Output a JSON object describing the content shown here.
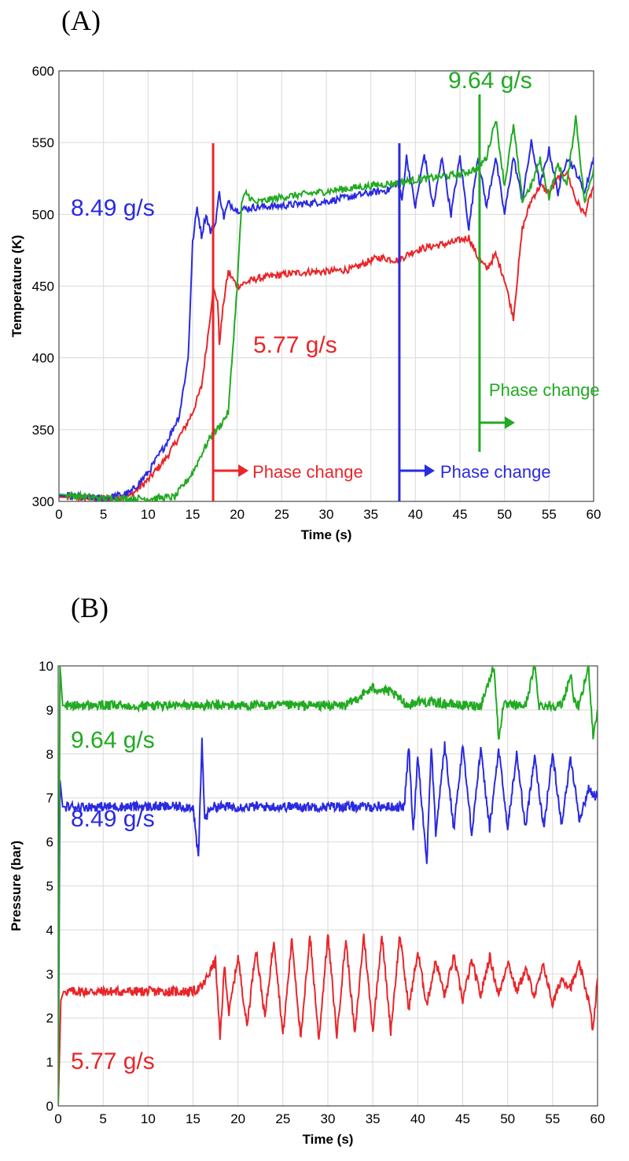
{
  "chart_data": [
    {
      "panel": "(A)",
      "type": "line",
      "xlabel": "Time (s)",
      "ylabel": "Temperature (K)",
      "xlim": [
        0,
        60
      ],
      "ylim": [
        300,
        600
      ],
      "xticks": [
        0,
        5,
        10,
        15,
        20,
        25,
        30,
        35,
        40,
        45,
        50,
        55,
        60
      ],
      "yticks": [
        300,
        350,
        400,
        450,
        500,
        550,
        600
      ],
      "grid": true,
      "series": [
        {
          "name": "5.77 g/s",
          "color": "#e8262a",
          "x": [
            0,
            5,
            8,
            10,
            12,
            14,
            15,
            16,
            16.8,
            17.3,
            17.8,
            18,
            18.5,
            19,
            20,
            22,
            25,
            28,
            30,
            33,
            35,
            36,
            38,
            40,
            42,
            44,
            45,
            46,
            47,
            48,
            49,
            50,
            51,
            52,
            53,
            54,
            55,
            56,
            57,
            58,
            59,
            60
          ],
          "y": [
            303,
            302,
            304,
            315,
            330,
            350,
            362,
            380,
            420,
            448,
            440,
            410,
            440,
            460,
            450,
            455,
            458,
            460,
            460,
            462,
            468,
            470,
            468,
            475,
            478,
            480,
            482,
            484,
            470,
            462,
            472,
            455,
            428,
            490,
            510,
            520,
            515,
            525,
            530,
            510,
            500,
            520
          ]
        },
        {
          "name": "8.49 g/s",
          "color": "#2a2ae0",
          "x": [
            0,
            5,
            8,
            10,
            12,
            13.5,
            14.5,
            15,
            15.5,
            16,
            16.5,
            17,
            17.5,
            18,
            18.5,
            19,
            20,
            22,
            25,
            30,
            35,
            37,
            38,
            38.5,
            39,
            40,
            41,
            42,
            43,
            44,
            45,
            46,
            47,
            48,
            49,
            50,
            51,
            52,
            53,
            54,
            55,
            56,
            57,
            58,
            59,
            60
          ],
          "y": [
            304,
            302,
            306,
            320,
            340,
            360,
            400,
            480,
            505,
            485,
            500,
            488,
            492,
            515,
            498,
            508,
            503,
            505,
            506,
            509,
            515,
            517,
            522,
            510,
            540,
            505,
            542,
            505,
            540,
            500,
            540,
            490,
            540,
            505,
            540,
            500,
            540,
            510,
            550,
            520,
            545,
            515,
            540,
            530,
            515,
            540
          ]
        },
        {
          "name": "9.64 g/s",
          "color": "#22aa22",
          "x": [
            0,
            5,
            10,
            13,
            15,
            16,
            17,
            18,
            19,
            20,
            20.5,
            21,
            22,
            25,
            30,
            35,
            38,
            40,
            45,
            47,
            48,
            49,
            50,
            51,
            52,
            53,
            54,
            55,
            56,
            57,
            58,
            59,
            60
          ],
          "y": [
            305,
            302,
            302,
            303,
            320,
            333,
            345,
            352,
            362,
            450,
            508,
            515,
            508,
            512,
            516,
            520,
            522,
            524,
            528,
            532,
            540,
            567,
            520,
            562,
            510,
            520,
            538,
            512,
            535,
            520,
            568,
            508,
            532
          ]
        }
      ],
      "annotations": {
        "label_577": "5.77 g/s",
        "label_849": "8.49 g/s",
        "label_964": "9.64 g/s",
        "phase_red": "Phase change",
        "phase_blue": "Phase change",
        "phase_green": "Phase change",
        "phase_red_x": 17.3,
        "phase_blue_x": 38.2,
        "phase_green_x": 47.2
      }
    },
    {
      "panel": "(B)",
      "type": "line",
      "xlabel": "Time (s)",
      "ylabel": "Pressure (bar)",
      "xlim": [
        0,
        60
      ],
      "ylim": [
        0,
        10
      ],
      "xticks": [
        0,
        5,
        10,
        15,
        20,
        25,
        30,
        35,
        40,
        45,
        50,
        55,
        60
      ],
      "yticks": [
        0,
        1,
        2,
        3,
        4,
        5,
        6,
        7,
        8,
        9,
        10
      ],
      "grid": true,
      "series": [
        {
          "name": "5.77 g/s",
          "color": "#e8262a",
          "x": [
            0,
            0.3,
            0.6,
            2,
            5,
            10,
            15,
            16,
            17,
            17.5,
            18,
            18.5,
            19,
            20,
            21,
            22,
            23,
            24,
            25,
            26,
            27,
            28,
            29,
            30,
            31,
            32,
            33,
            34,
            35,
            36,
            37,
            38,
            39,
            40,
            41,
            42,
            43,
            44,
            45,
            46,
            47,
            48,
            49,
            50,
            51,
            52,
            53,
            54,
            55,
            56,
            57,
            58,
            59,
            59.5,
            60
          ],
          "y": [
            0,
            2.4,
            2.6,
            2.6,
            2.6,
            2.6,
            2.6,
            2.7,
            3.1,
            3.3,
            1.5,
            3.2,
            2.1,
            3.4,
            1.8,
            3.6,
            2.0,
            3.8,
            1.6,
            3.8,
            1.5,
            3.9,
            1.5,
            3.9,
            1.6,
            3.8,
            1.6,
            3.9,
            1.7,
            3.9,
            1.7,
            3.9,
            2.2,
            3.5,
            2.3,
            3.3,
            2.5,
            3.4,
            2.4,
            3.3,
            2.5,
            3.4,
            2.5,
            3.3,
            2.6,
            3.1,
            2.5,
            3.2,
            2.3,
            2.9,
            2.7,
            3.2,
            2.4,
            1.7,
            2.9
          ]
        },
        {
          "name": "8.49 g/s",
          "color": "#2a2ae0",
          "x": [
            0,
            0.2,
            0.5,
            2,
            5,
            10,
            15,
            15.6,
            16,
            16.3,
            17,
            20,
            25,
            30,
            35,
            38.5,
            39,
            39.5,
            40,
            41,
            41.5,
            42,
            43,
            44,
            45,
            46,
            47,
            48,
            49,
            50,
            51,
            52,
            53,
            54,
            55,
            56,
            57,
            58,
            59,
            60
          ],
          "y": [
            0,
            7.4,
            6.8,
            6.8,
            6.8,
            6.8,
            6.8,
            5.6,
            8.3,
            6.5,
            6.8,
            6.8,
            6.8,
            6.8,
            6.8,
            6.8,
            8.2,
            6.2,
            8.0,
            5.5,
            8.2,
            6.2,
            8.2,
            6.3,
            8.2,
            6.2,
            8.1,
            6.3,
            8.1,
            6.3,
            8.0,
            6.3,
            8.0,
            6.3,
            8.0,
            6.4,
            7.9,
            6.5,
            7.2,
            7.0
          ]
        },
        {
          "name": "9.64 g/s",
          "color": "#22aa22",
          "x": [
            0,
            0.2,
            0.5,
            2,
            5,
            10,
            15,
            20,
            25,
            30,
            32,
            35,
            37,
            39,
            40,
            45,
            47,
            48.5,
            49,
            49.5,
            50,
            52,
            53,
            53.5,
            54,
            56,
            57,
            57.5,
            58,
            59,
            59.5,
            60
          ],
          "y": [
            0,
            10,
            9.1,
            9.1,
            9.1,
            9.1,
            9.1,
            9.1,
            9.1,
            9.1,
            9.1,
            9.5,
            9.4,
            9.1,
            9.2,
            9.1,
            9.1,
            10,
            8.3,
            9.1,
            9.1,
            9.1,
            10,
            9.1,
            9.1,
            9.1,
            9.8,
            9.1,
            9.1,
            10,
            8.4,
            9.0
          ]
        }
      ],
      "annotations": {
        "label_964": "9.64 g/s",
        "label_849": "8.49 g/s",
        "label_577": "5.77 g/s"
      }
    }
  ]
}
